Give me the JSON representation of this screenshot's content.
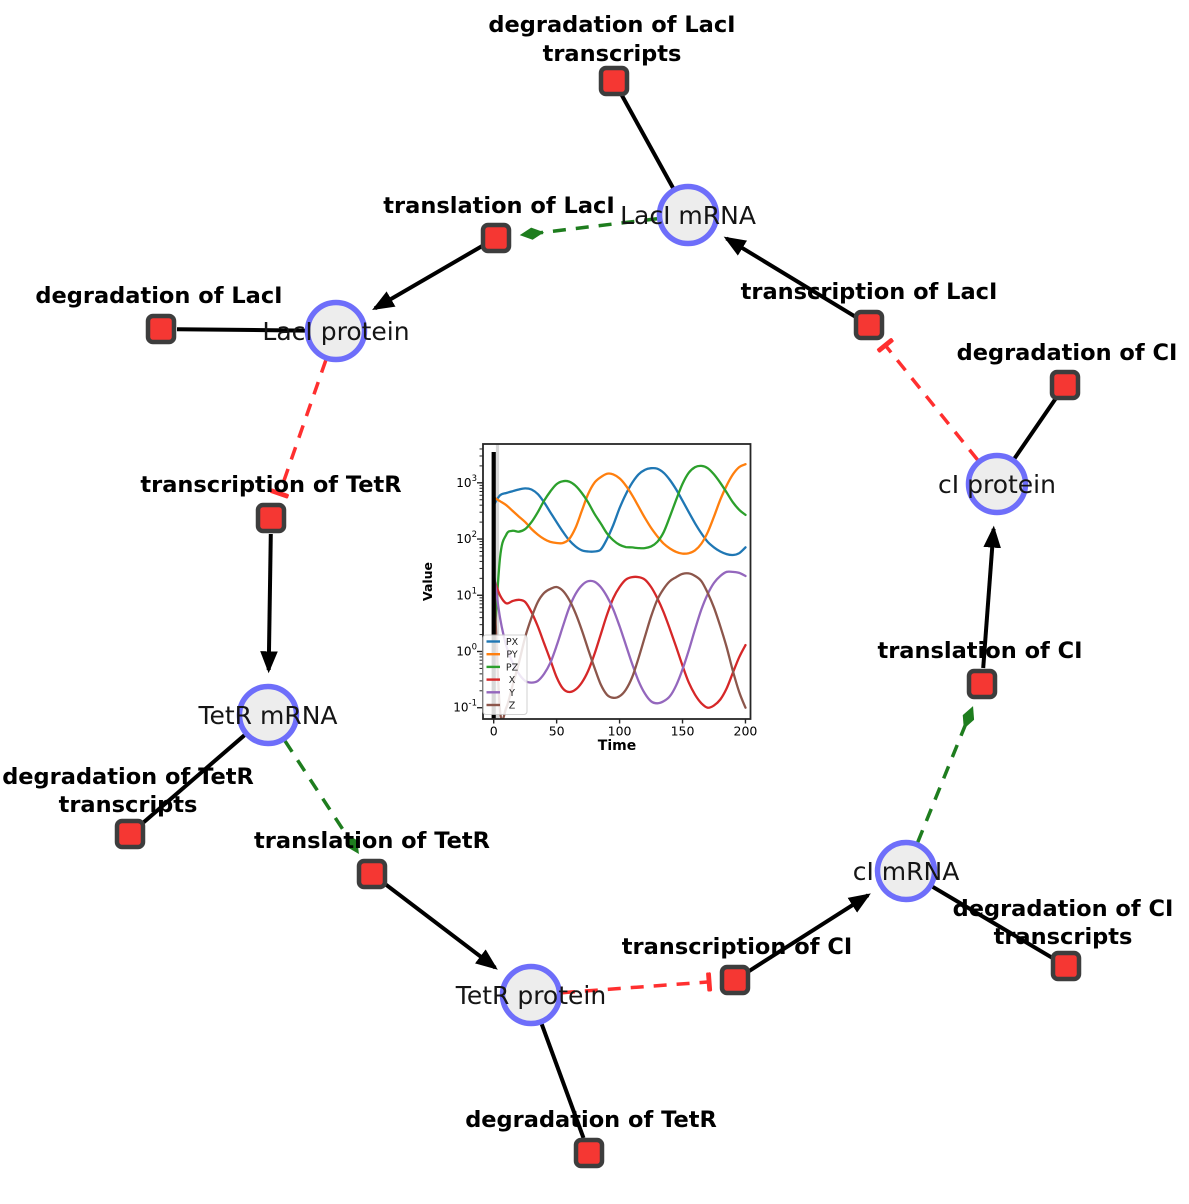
{
  "network": {
    "colors": {
      "species_fill": "#ededed",
      "species_border": "#6e6efa",
      "reaction_fill": "#f53733",
      "reaction_border": "#3d3d3d",
      "edge": "#000000",
      "inhibition": "#ff2f2f",
      "modifier": "#1e7d1e"
    },
    "species": [
      {
        "id": "laci-mrna",
        "label": "LacI mRNA"
      },
      {
        "id": "laci-protein",
        "label": "LacI protein"
      },
      {
        "id": "tetr-mrna",
        "label": "TetR mRNA"
      },
      {
        "id": "tetr-protein",
        "label": "TetR protein"
      },
      {
        "id": "ci-mrna",
        "label": "cI mRNA"
      },
      {
        "id": "ci-protein",
        "label": "cI protein"
      }
    ],
    "reactions": [
      {
        "id": "degradation-laci-transcripts",
        "line1": "degradation of LacI",
        "line2": "transcripts"
      },
      {
        "id": "translation-laci",
        "line1": "translation of LacI"
      },
      {
        "id": "transcription-laci",
        "line1": "transcription of LacI"
      },
      {
        "id": "degradation-laci",
        "line1": "degradation of LacI"
      },
      {
        "id": "transcription-tetr",
        "line1": "transcription of TetR"
      },
      {
        "id": "degradation-tetr-transcripts",
        "line1": "degradation of TetR",
        "line2": "transcripts"
      },
      {
        "id": "translation-tetr",
        "line1": "translation of TetR"
      },
      {
        "id": "degradation-tetr",
        "line1": "degradation of TetR"
      },
      {
        "id": "transcription-ci",
        "line1": "transcription of CI"
      },
      {
        "id": "degradation-ci-transcripts",
        "line1": "degradation of CI",
        "line2": "transcripts"
      },
      {
        "id": "translation-ci",
        "line1": "translation of CI"
      },
      {
        "id": "degradation-ci",
        "line1": "degradation of CI"
      }
    ]
  },
  "chart_data": {
    "type": "line",
    "xlabel": "Time",
    "ylabel": "Value",
    "yscale": "log",
    "x_start": 0,
    "x_step": 5,
    "x_end": 200,
    "xticks": [
      0,
      50,
      100,
      150,
      200
    ],
    "ytick_exponents": [
      -1,
      0,
      1,
      2,
      3
    ],
    "xlim": [
      -8.5,
      204
    ],
    "ylim": [
      0.063,
      4900
    ],
    "legend_position": "lower left",
    "event_line_x": 0,
    "series": [
      {
        "name": "PX",
        "color": "#1f77b4",
        "values": [
          400,
          600,
          660,
          710,
          760,
          795,
          760,
          630,
          450,
          300,
          200,
          135,
          95,
          74,
          63,
          60,
          60,
          65,
          100,
          178,
          355,
          630,
          1000,
          1410,
          1700,
          1820,
          1780,
          1510,
          1120,
          760,
          480,
          300,
          190,
          126,
          89,
          71,
          60,
          54,
          52,
          56,
          71
        ]
      },
      {
        "name": "PY",
        "color": "#ff7f0e",
        "values": [
          550,
          470,
          400,
          316,
          251,
          200,
          151,
          120,
          100,
          89,
          85,
          85,
          100,
          158,
          316,
          630,
          1000,
          1260,
          1450,
          1410,
          1200,
          890,
          600,
          380,
          240,
          158,
          112,
          83,
          68,
          59,
          55,
          56,
          63,
          83,
          132,
          251,
          500,
          890,
          1410,
          1900,
          2140
        ]
      },
      {
        "name": "PZ",
        "color": "#2ca02c",
        "values": [
          1,
          46,
          120,
          140,
          135,
          150,
          200,
          300,
          480,
          700,
          950,
          1070,
          1050,
          890,
          660,
          450,
          282,
          190,
          126,
          95,
          79,
          72,
          71,
          69,
          69,
          74,
          89,
          132,
          251,
          500,
          955,
          1510,
          1900,
          2000,
          1820,
          1410,
          1000,
          675,
          450,
          331,
          269
        ]
      },
      {
        "name": "X",
        "color": "#d62728",
        "values": [
          20,
          10,
          7.2,
          7.9,
          8.3,
          7.6,
          5,
          2.8,
          1.4,
          0.71,
          0.35,
          0.22,
          0.19,
          0.21,
          0.28,
          0.45,
          0.89,
          2,
          4.5,
          8.9,
          14,
          19,
          21,
          21,
          19,
          14,
          8.9,
          5,
          2.5,
          1.2,
          0.56,
          0.28,
          0.17,
          0.12,
          0.1,
          0.11,
          0.14,
          0.22,
          0.42,
          0.79,
          1.3
        ]
      },
      {
        "name": "Y",
        "color": "#9467bd",
        "values": [
          26,
          4,
          1.26,
          0.63,
          0.4,
          0.3,
          0.28,
          0.3,
          0.4,
          0.63,
          1.26,
          2.8,
          6,
          10.5,
          15,
          17.8,
          17.4,
          14,
          9.5,
          5.6,
          2.8,
          1.3,
          0.6,
          0.3,
          0.18,
          0.13,
          0.12,
          0.13,
          0.16,
          0.25,
          0.48,
          1.05,
          2.5,
          5.6,
          10.5,
          16.6,
          22,
          26,
          26,
          25,
          22
        ]
      },
      {
        "name": "Z",
        "color": "#8c564b",
        "values": [
          25,
          0.09,
          0.1,
          0.25,
          0.63,
          1.8,
          4,
          7.6,
          11,
          13,
          14,
          12,
          8.3,
          4.8,
          2.4,
          1.1,
          0.52,
          0.26,
          0.17,
          0.15,
          0.16,
          0.21,
          0.35,
          0.76,
          1.8,
          4.2,
          8.3,
          13,
          17.8,
          21,
          24,
          24.5,
          22,
          17.8,
          11,
          6,
          2.8,
          1.2,
          0.45,
          0.19,
          0.1
        ]
      }
    ]
  }
}
